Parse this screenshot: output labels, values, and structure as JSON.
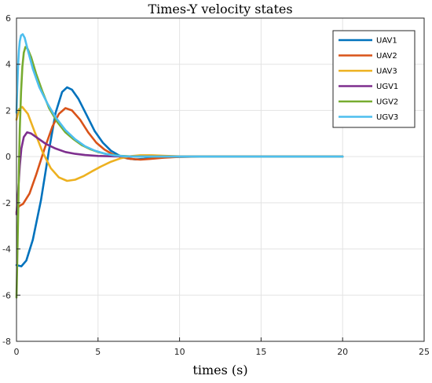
{
  "chart_data": {
    "type": "line",
    "title": "Times-Y velocity states",
    "xlabel": "times (s)",
    "ylabel": "",
    "xlim": [
      0,
      25
    ],
    "ylim": [
      -8,
      6
    ],
    "xticks": [
      0,
      5,
      10,
      15,
      20,
      25
    ],
    "yticks": [
      -8,
      -6,
      -4,
      -2,
      0,
      2,
      4,
      6
    ],
    "grid": true,
    "legend_position": "top-right",
    "series": [
      {
        "name": "UAV1",
        "color": "#0072BD",
        "points": [
          [
            0,
            -4.7
          ],
          [
            0.3,
            -4.75
          ],
          [
            0.6,
            -4.5
          ],
          [
            1.0,
            -3.6
          ],
          [
            1.5,
            -1.9
          ],
          [
            2.0,
            0.3
          ],
          [
            2.4,
            1.9
          ],
          [
            2.8,
            2.8
          ],
          [
            3.1,
            3.0
          ],
          [
            3.4,
            2.9
          ],
          [
            3.8,
            2.5
          ],
          [
            4.3,
            1.8
          ],
          [
            4.8,
            1.1
          ],
          [
            5.3,
            0.6
          ],
          [
            5.8,
            0.25
          ],
          [
            6.3,
            0.05
          ],
          [
            6.8,
            -0.08
          ],
          [
            7.3,
            -0.12
          ],
          [
            7.8,
            -0.1
          ],
          [
            8.5,
            -0.06
          ],
          [
            9.5,
            -0.02
          ],
          [
            11,
            0
          ],
          [
            14,
            0
          ],
          [
            20,
            0
          ]
        ]
      },
      {
        "name": "UAV2",
        "color": "#D95319",
        "points": [
          [
            0,
            -2.4
          ],
          [
            0.15,
            -2.15
          ],
          [
            0.4,
            -2.05
          ],
          [
            0.8,
            -1.6
          ],
          [
            1.2,
            -0.8
          ],
          [
            1.7,
            0.3
          ],
          [
            2.2,
            1.3
          ],
          [
            2.6,
            1.85
          ],
          [
            3.0,
            2.1
          ],
          [
            3.4,
            2.0
          ],
          [
            3.9,
            1.6
          ],
          [
            4.4,
            1.05
          ],
          [
            4.9,
            0.6
          ],
          [
            5.4,
            0.3
          ],
          [
            5.9,
            0.1
          ],
          [
            6.4,
            -0.02
          ],
          [
            7.0,
            -0.1
          ],
          [
            7.6,
            -0.13
          ],
          [
            8.2,
            -0.1
          ],
          [
            9.0,
            -0.05
          ],
          [
            10,
            -0.01
          ],
          [
            12,
            0
          ],
          [
            20,
            0
          ]
        ]
      },
      {
        "name": "UAV3",
        "color": "#EDB120",
        "points": [
          [
            0,
            1.6
          ],
          [
            0.15,
            2.05
          ],
          [
            0.35,
            2.15
          ],
          [
            0.7,
            1.85
          ],
          [
            1.1,
            1.1
          ],
          [
            1.6,
            0.2
          ],
          [
            2.1,
            -0.5
          ],
          [
            2.6,
            -0.9
          ],
          [
            3.1,
            -1.05
          ],
          [
            3.6,
            -1.0
          ],
          [
            4.1,
            -0.85
          ],
          [
            4.6,
            -0.65
          ],
          [
            5.2,
            -0.42
          ],
          [
            5.8,
            -0.22
          ],
          [
            6.4,
            -0.07
          ],
          [
            7.0,
            0.02
          ],
          [
            7.6,
            0.06
          ],
          [
            8.3,
            0.06
          ],
          [
            9.0,
            0.04
          ],
          [
            10,
            0.01
          ],
          [
            12,
            0
          ],
          [
            20,
            0
          ]
        ]
      },
      {
        "name": "UGV1",
        "color": "#7E2F8E",
        "points": [
          [
            0,
            -2.5
          ],
          [
            0.1,
            -1.5
          ],
          [
            0.2,
            -0.4
          ],
          [
            0.3,
            0.35
          ],
          [
            0.45,
            0.85
          ],
          [
            0.65,
            1.05
          ],
          [
            0.9,
            1.0
          ],
          [
            1.3,
            0.8
          ],
          [
            1.8,
            0.55
          ],
          [
            2.4,
            0.35
          ],
          [
            3.0,
            0.2
          ],
          [
            3.6,
            0.12
          ],
          [
            4.2,
            0.07
          ],
          [
            5.0,
            0.03
          ],
          [
            6.0,
            0.01
          ],
          [
            7.5,
            0
          ],
          [
            20,
            0
          ]
        ]
      },
      {
        "name": "UGV2",
        "color": "#77AC30",
        "points": [
          [
            0,
            -6.1
          ],
          [
            0.05,
            -4.5
          ],
          [
            0.1,
            -2.5
          ],
          [
            0.15,
            -0.5
          ],
          [
            0.2,
            1.2
          ],
          [
            0.28,
            2.8
          ],
          [
            0.36,
            3.9
          ],
          [
            0.45,
            4.5
          ],
          [
            0.55,
            4.75
          ],
          [
            0.7,
            4.65
          ],
          [
            0.9,
            4.3
          ],
          [
            1.2,
            3.6
          ],
          [
            1.6,
            2.8
          ],
          [
            2.0,
            2.1
          ],
          [
            2.5,
            1.5
          ],
          [
            3.0,
            1.05
          ],
          [
            3.5,
            0.75
          ],
          [
            4.0,
            0.5
          ],
          [
            4.5,
            0.33
          ],
          [
            5.0,
            0.2
          ],
          [
            5.6,
            0.1
          ],
          [
            6.3,
            0.04
          ],
          [
            7.0,
            0.01
          ],
          [
            8,
            0
          ],
          [
            20,
            0
          ]
        ]
      },
      {
        "name": "UGV3",
        "color": "#4DBEEE",
        "points": [
          [
            0,
            1.9
          ],
          [
            0.05,
            3.0
          ],
          [
            0.1,
            4.0
          ],
          [
            0.15,
            4.6
          ],
          [
            0.2,
            5.0
          ],
          [
            0.28,
            5.25
          ],
          [
            0.38,
            5.3
          ],
          [
            0.5,
            5.15
          ],
          [
            0.7,
            4.6
          ],
          [
            1.0,
            3.8
          ],
          [
            1.4,
            3.0
          ],
          [
            1.9,
            2.3
          ],
          [
            2.4,
            1.7
          ],
          [
            3.0,
            1.15
          ],
          [
            3.6,
            0.75
          ],
          [
            4.2,
            0.45
          ],
          [
            4.8,
            0.26
          ],
          [
            5.4,
            0.13
          ],
          [
            6.0,
            0.05
          ],
          [
            6.7,
            0.01
          ],
          [
            7.5,
            0
          ],
          [
            20,
            0
          ]
        ]
      }
    ]
  }
}
